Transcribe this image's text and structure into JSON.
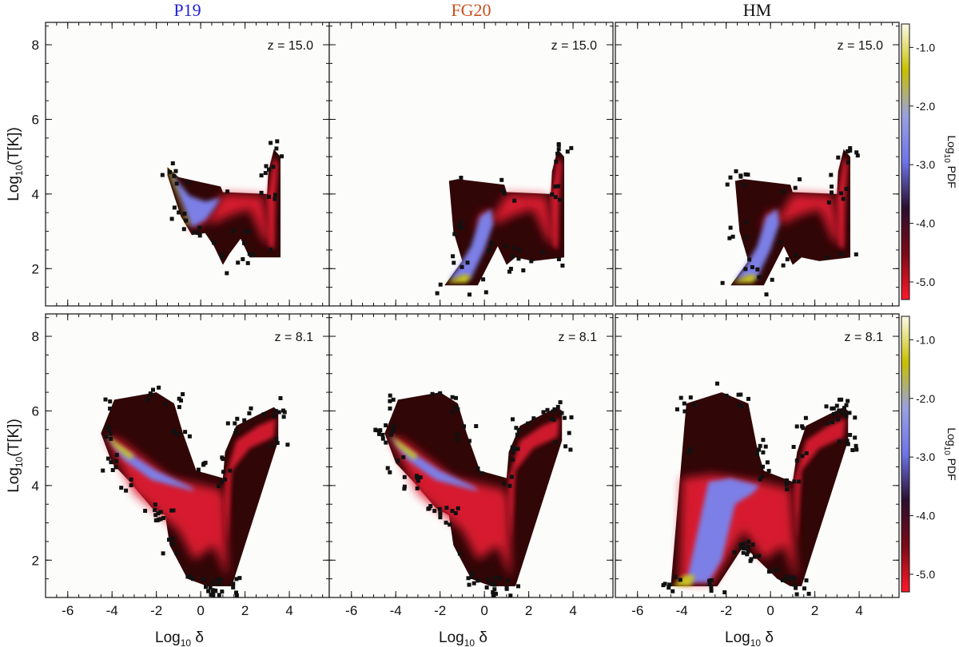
{
  "chart_data": {
    "type": "heatmap",
    "column_titles": [
      {
        "text": "P19",
        "color": "#2323d8"
      },
      {
        "text": "FG20",
        "color": "#c8501e"
      },
      {
        "text": "HM",
        "color": "#111111"
      }
    ],
    "xlabel_main": "Log",
    "xlabel_sub": "10",
    "xlabel_tail": " δ",
    "ylabel_main": "Log",
    "ylabel_sub": "10",
    "ylabel_tail": "(T[K])",
    "xlim": [
      -7,
      5.8
    ],
    "ylim": [
      1,
      8.6
    ],
    "xticks": [
      -6,
      -4,
      -2,
      0,
      2,
      4
    ],
    "xticklabels": [
      "-6",
      "-4",
      "-2",
      "0",
      "2",
      "4"
    ],
    "yticks": [
      2,
      4,
      6,
      8
    ],
    "yticklabels": [
      "2",
      "4",
      "6",
      "8"
    ],
    "rows": [
      {
        "redshift_label": "z = 15.0"
      },
      {
        "redshift_label": "z =  8.1"
      }
    ],
    "colorbar": {
      "label_main": "Log",
      "label_sub": "10",
      "label_tail": " PDF",
      "range": [
        -5.3,
        -0.6
      ],
      "ticks": [
        -1.0,
        -2.0,
        -3.0,
        -4.0,
        -5.0
      ],
      "ticklabels": [
        "-1.0",
        "-2.0",
        "-3.0",
        "-4.0",
        "-5.0"
      ],
      "colors": [
        "#ff1a2a",
        "#7a0a18",
        "#2a0f2e",
        "#6e74e8",
        "#9aa0e0",
        "#c8c000",
        "#fbfbe8"
      ]
    },
    "colors": {
      "background": "#fcfcfa",
      "outer_halo": "#300606",
      "red_band": "#e01a30",
      "blue_core": "#7b7fe6",
      "yellow_core": "#c8c320",
      "pixel_dot": "#111111"
    },
    "panels": [
      {
        "row": 0,
        "col": 0,
        "model": "P19",
        "redshift": 15.0,
        "diffuse_ridge": [
          [
            -1.4,
            4.65
          ],
          [
            -0.3,
            3.0
          ]
        ],
        "min_temperature_floor": null,
        "shock_branch_peak": [
          3.3,
          5.1
        ]
      },
      {
        "row": 0,
        "col": 1,
        "model": "FG20",
        "redshift": 15.0,
        "diffuse_ridge": [
          [
            -1.8,
            1.65
          ],
          [
            -0.3,
            3.2
          ]
        ],
        "min_temperature_floor": 1.65,
        "shock_branch_peak": [
          3.3,
          5.1
        ]
      },
      {
        "row": 0,
        "col": 2,
        "model": "HM",
        "redshift": 15.0,
        "diffuse_ridge": [
          [
            -1.8,
            1.65
          ],
          [
            -0.3,
            3.2
          ]
        ],
        "min_temperature_floor": 1.65,
        "shock_branch_peak": [
          3.3,
          5.1
        ]
      },
      {
        "row": 1,
        "col": 0,
        "model": "P19",
        "redshift": 8.1,
        "diffuse_ridge": [
          [
            -4.4,
            5.4
          ],
          [
            -0.4,
            3.9
          ]
        ],
        "min_temperature_floor": null,
        "shock_branch_peak": [
          3.3,
          6.0
        ]
      },
      {
        "row": 1,
        "col": 1,
        "model": "FG20",
        "redshift": 8.1,
        "diffuse_ridge": [
          [
            -4.6,
            5.8
          ],
          [
            -0.4,
            3.9
          ]
        ],
        "min_temperature_floor": null,
        "shock_branch_peak": [
          3.3,
          6.0
        ]
      },
      {
        "row": 1,
        "col": 2,
        "model": "HM",
        "redshift": 8.1,
        "diffuse_ridge": [
          [
            -4.4,
            1.3
          ],
          [
            -3.6,
            1.3
          ]
        ],
        "min_temperature_floor": 1.3,
        "shock_branch_peak": [
          3.3,
          6.0
        ]
      }
    ]
  }
}
